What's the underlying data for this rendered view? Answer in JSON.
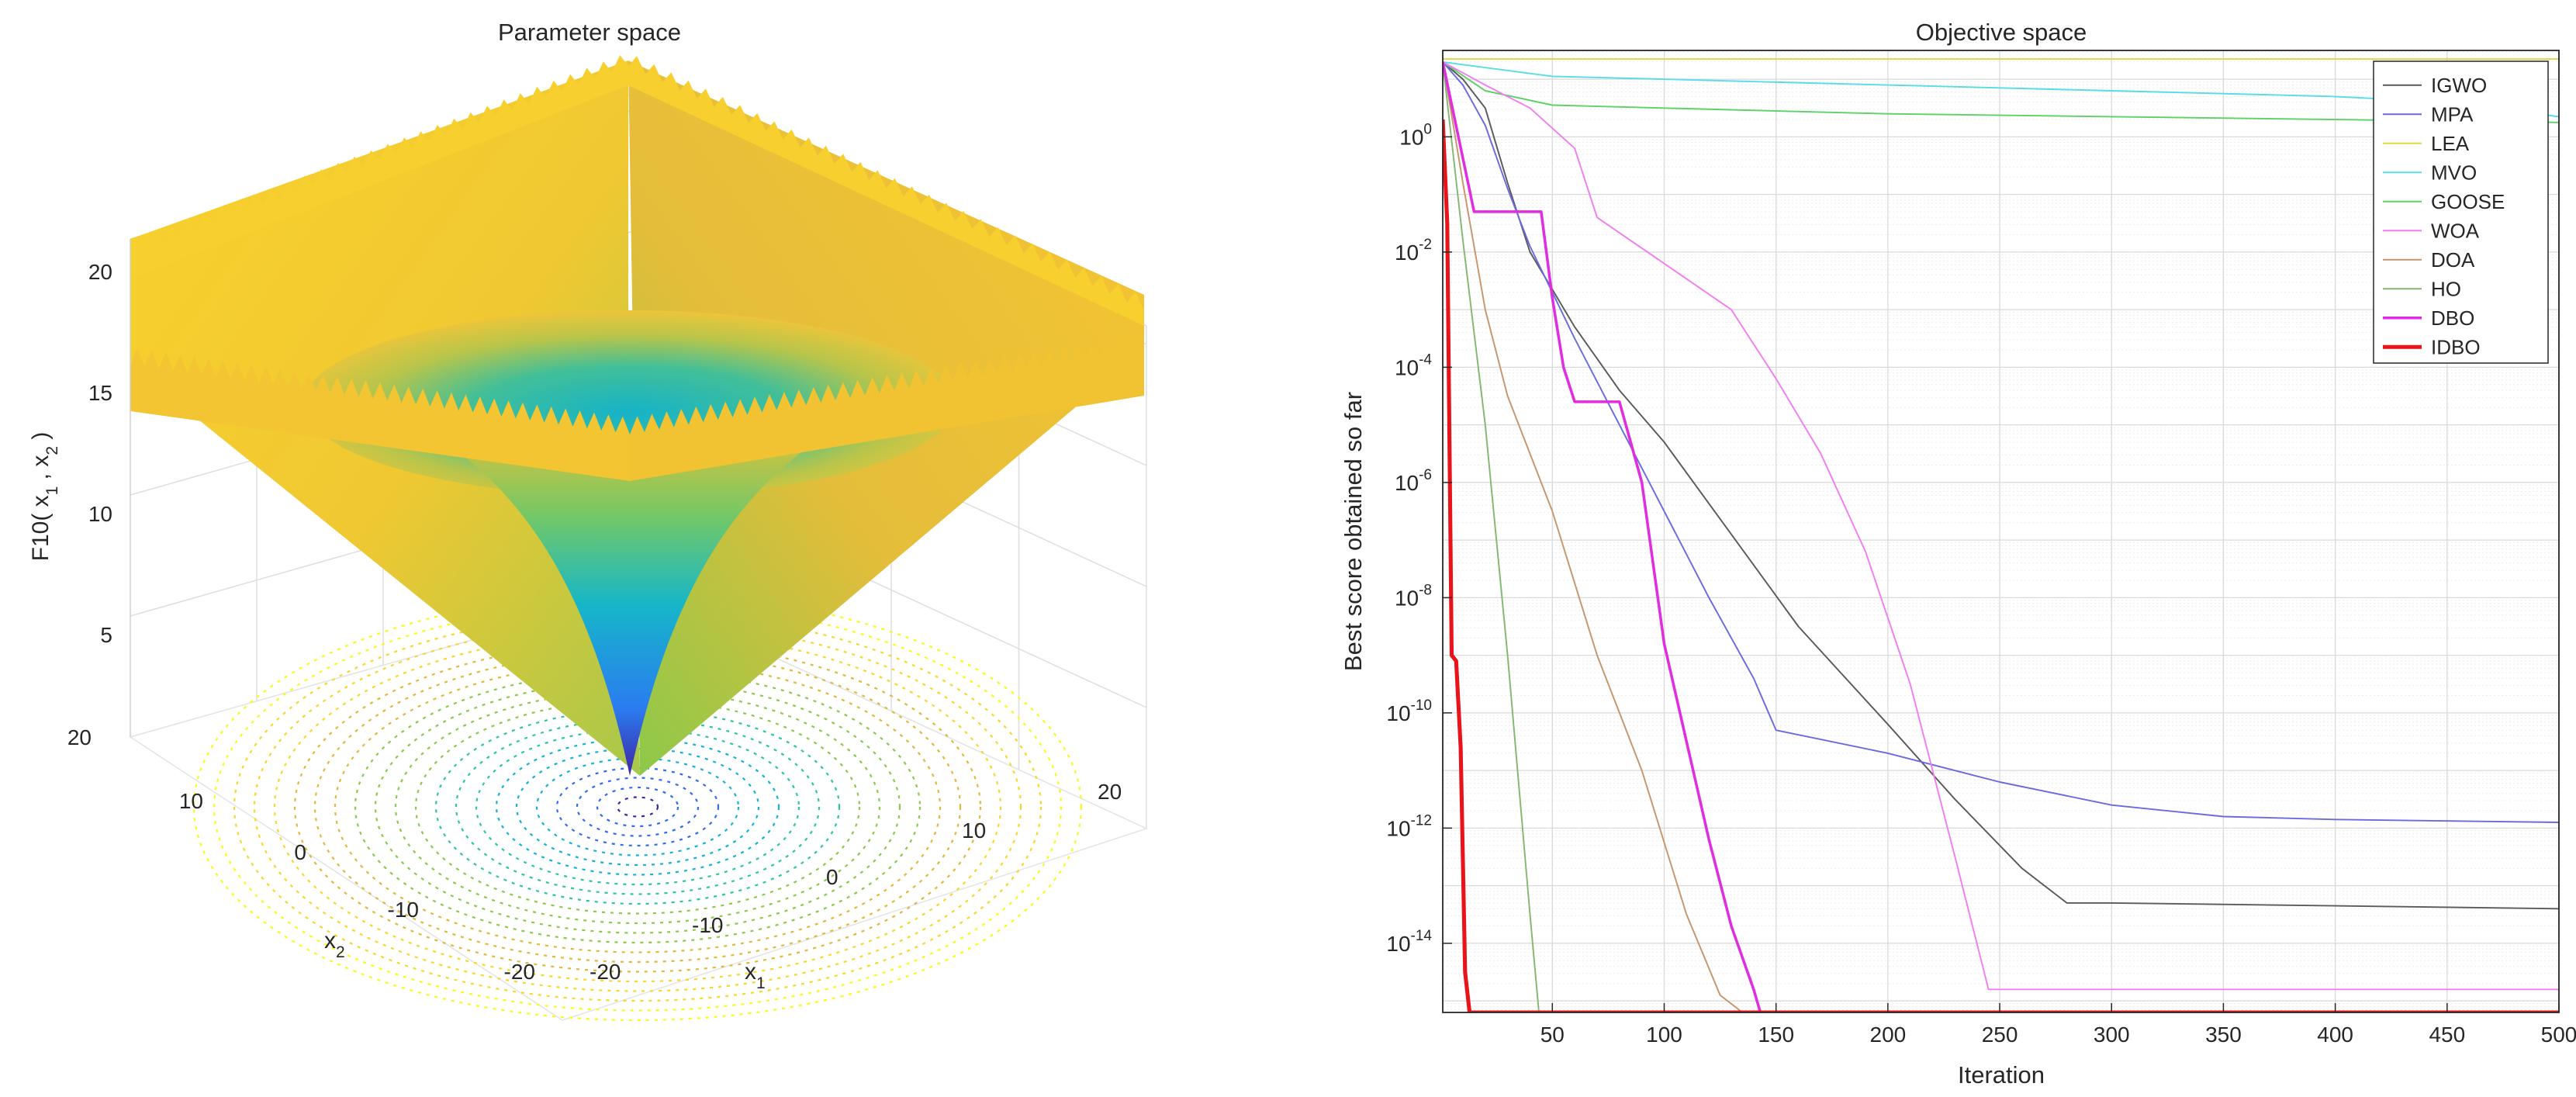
{
  "chart_data": [
    {
      "type": "surface",
      "title": "Parameter space",
      "function_label": "F10",
      "zlabel_parts": [
        "F10( x",
        "1",
        " , x",
        "2",
        " )"
      ],
      "xlabel": "x",
      "xlabel_sub": "1",
      "ylabel": "x",
      "ylabel_sub": "2",
      "x_ticks": [
        "-20",
        "-10",
        "0",
        "10",
        "20"
      ],
      "y_ticks": [
        "-20",
        "-10",
        "0",
        "10",
        "20"
      ],
      "z_ticks": [
        "5",
        "10",
        "15",
        "20"
      ],
      "xlim": [
        -20,
        20
      ],
      "ylim": [
        -20,
        20
      ],
      "zlim": [
        0,
        22
      ],
      "colormap": [
        "#3e26a8",
        "#2f6cf2",
        "#13b2d9",
        "#2bc79f",
        "#8bc94a",
        "#e2b83a",
        "#f8d62a",
        "#f9fb15"
      ]
    },
    {
      "type": "line",
      "title": "Objective space",
      "xlabel": "Iteration",
      "ylabel": "Best score obtained so far",
      "xscale": "linear",
      "yscale": "log",
      "xlim": [
        1,
        500
      ],
      "ylim_exp": [
        -15.2,
        1.5
      ],
      "x_ticks": [
        "50",
        "100",
        "150",
        "200",
        "250",
        "300",
        "350",
        "400",
        "450",
        "500"
      ],
      "y_ticks": [
        {
          "base": "10",
          "exp": "0"
        },
        {
          "base": "10",
          "exp": "-2"
        },
        {
          "base": "10",
          "exp": "-4"
        },
        {
          "base": "10",
          "exp": "-6"
        },
        {
          "base": "10",
          "exp": "-8"
        },
        {
          "base": "10",
          "exp": "-10"
        },
        {
          "base": "10",
          "exp": "-12"
        },
        {
          "base": "10",
          "exp": "-14"
        }
      ],
      "legend_position": "top-right",
      "series": [
        {
          "name": "IGWO",
          "color": "#5a5a5a",
          "width": 1.2,
          "x": [
            1,
            10,
            20,
            30,
            40,
            60,
            80,
            100,
            130,
            160,
            200,
            230,
            260,
            280,
            300,
            400,
            500
          ],
          "log10_y": [
            1.3,
            1.0,
            0.5,
            -0.8,
            -2.0,
            -3.3,
            -4.4,
            -5.3,
            -6.9,
            -8.5,
            -10.2,
            -11.5,
            -12.7,
            -13.3,
            -13.3,
            -13.35,
            -13.4
          ]
        },
        {
          "name": "MPA",
          "color": "#6a6ae0",
          "width": 1.2,
          "x": [
            1,
            10,
            20,
            30,
            40,
            60,
            80,
            100,
            120,
            140,
            150,
            200,
            250,
            300,
            350,
            400,
            500
          ],
          "log10_y": [
            1.3,
            0.9,
            0.2,
            -0.9,
            -1.9,
            -3.5,
            -5.0,
            -6.5,
            -8.0,
            -9.4,
            -10.3,
            -10.7,
            -11.2,
            -11.6,
            -11.8,
            -11.85,
            -11.9
          ]
        },
        {
          "name": "LEA",
          "color": "#e0d640",
          "width": 1.2,
          "x": [
            1,
            500
          ],
          "log10_y": [
            1.35,
            1.35
          ]
        },
        {
          "name": "MVO",
          "color": "#55dde5",
          "width": 1.2,
          "x": [
            1,
            50,
            100,
            200,
            300,
            400,
            450,
            500
          ],
          "log10_y": [
            1.3,
            1.05,
            1.0,
            0.9,
            0.8,
            0.7,
            0.6,
            0.35
          ]
        },
        {
          "name": "GOOSE",
          "color": "#5ad265",
          "width": 1.2,
          "x": [
            1,
            20,
            50,
            100,
            200,
            300,
            400,
            500
          ],
          "log10_y": [
            1.3,
            0.8,
            0.55,
            0.5,
            0.4,
            0.35,
            0.3,
            0.25
          ]
        },
        {
          "name": "WOA",
          "color": "#f27cf2",
          "width": 1.2,
          "x": [
            1,
            20,
            40,
            60,
            70,
            100,
            130,
            150,
            170,
            190,
            210,
            230,
            245,
            300,
            400,
            500
          ],
          "log10_y": [
            1.3,
            0.9,
            0.5,
            -0.2,
            -1.4,
            -2.2,
            -3.0,
            -4.2,
            -5.5,
            -7.2,
            -9.5,
            -12.5,
            -14.8,
            -14.8,
            -14.8,
            -14.8
          ]
        },
        {
          "name": "DOA",
          "color": "#c8946a",
          "width": 1.2,
          "x": [
            1,
            10,
            20,
            30,
            50,
            70,
            90,
            110,
            125,
            135
          ],
          "log10_y": [
            1.3,
            -0.8,
            -3.0,
            -4.5,
            -6.5,
            -9.0,
            -11.0,
            -13.5,
            -14.9,
            -15.2
          ]
        },
        {
          "name": "HO",
          "color": "#80b870",
          "width": 1.2,
          "x": [
            1,
            10,
            20,
            30,
            40,
            44
          ],
          "log10_y": [
            1.3,
            -1.8,
            -5.0,
            -9.0,
            -13.5,
            -15.2
          ]
        },
        {
          "name": "DBO",
          "color": "#e02de0",
          "width": 2.2,
          "x": [
            1,
            15,
            45,
            50,
            55,
            60,
            80,
            90,
            100,
            110,
            120,
            130,
            140,
            143
          ],
          "log10_y": [
            1.3,
            -1.3,
            -1.3,
            -2.8,
            -4.0,
            -4.6,
            -4.6,
            -6.0,
            -8.8,
            -10.5,
            -12.2,
            -13.7,
            -14.8,
            -15.2
          ]
        },
        {
          "name": "IDBO",
          "color": "#e8141a",
          "width": 3.2,
          "x": [
            1,
            3,
            5,
            7,
            9,
            11,
            13,
            500
          ],
          "log10_y": [
            0.3,
            -1.5,
            -9.0,
            -9.1,
            -10.6,
            -14.5,
            -15.2,
            -15.2
          ]
        }
      ]
    }
  ]
}
